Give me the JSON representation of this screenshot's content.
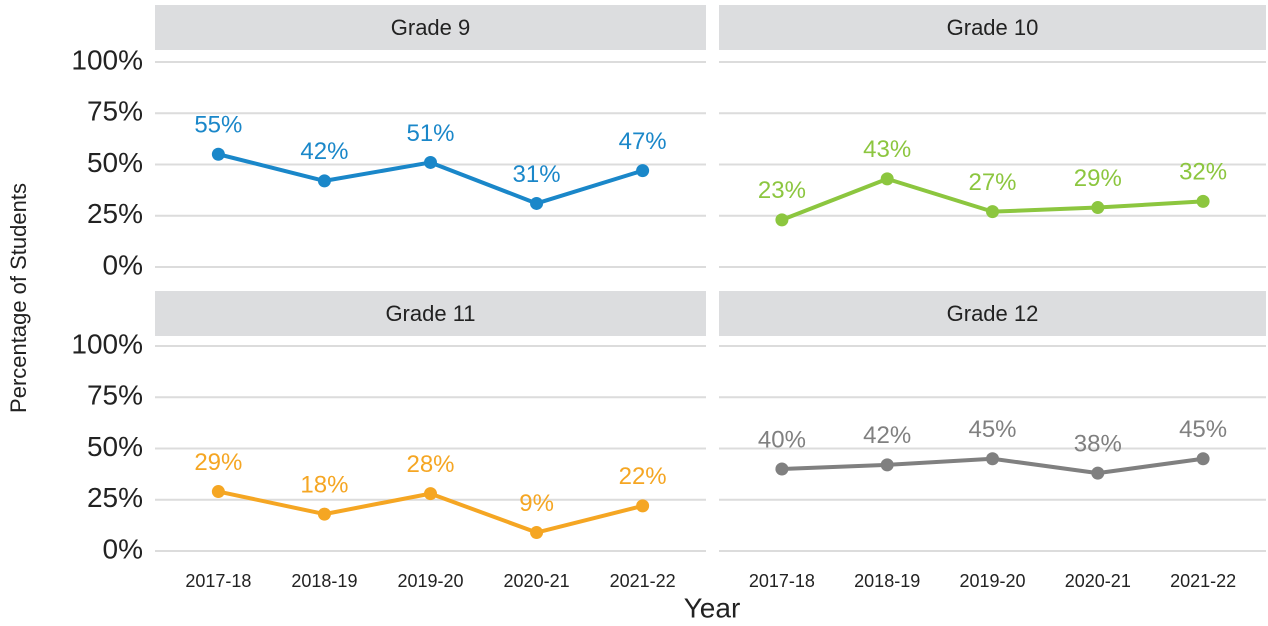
{
  "x_label": "Year",
  "y_label": "Percentage of Students",
  "chart_data": [
    {
      "type": "line",
      "title": "Grade 9",
      "categories": [
        "2017-18",
        "2018-19",
        "2019-20",
        "2020-21",
        "2021-22"
      ],
      "values": [
        55,
        42,
        51,
        31,
        47
      ],
      "value_labels": [
        "55%",
        "42%",
        "51%",
        "31%",
        "47%"
      ],
      "color": "#1a87c9",
      "ylim": [
        0,
        100
      ],
      "yticks": [
        {
          "value": 0,
          "label": "0%"
        },
        {
          "value": 25,
          "label": "25%"
        },
        {
          "value": 50,
          "label": "50%"
        },
        {
          "value": 75,
          "label": "75%"
        },
        {
          "value": 100,
          "label": "100%"
        }
      ],
      "grid": true
    },
    {
      "type": "line",
      "title": "Grade 10",
      "categories": [
        "2017-18",
        "2018-19",
        "2019-20",
        "2020-21",
        "2021-22"
      ],
      "values": [
        23,
        43,
        27,
        29,
        32
      ],
      "value_labels": [
        "23%",
        "43%",
        "27%",
        "29%",
        "32%"
      ],
      "color": "#8cc63f",
      "ylim": [
        0,
        100
      ],
      "yticks": [
        {
          "value": 0,
          "label": "0%"
        },
        {
          "value": 25,
          "label": "25%"
        },
        {
          "value": 50,
          "label": "50%"
        },
        {
          "value": 75,
          "label": "75%"
        },
        {
          "value": 100,
          "label": "100%"
        }
      ],
      "grid": true
    },
    {
      "type": "line",
      "title": "Grade 11",
      "categories": [
        "2017-18",
        "2018-19",
        "2019-20",
        "2020-21",
        "2021-22"
      ],
      "values": [
        29,
        18,
        28,
        9,
        22
      ],
      "value_labels": [
        "29%",
        "18%",
        "28%",
        "9%",
        "22%"
      ],
      "color": "#f5a623",
      "ylim": [
        0,
        100
      ],
      "yticks": [
        {
          "value": 0,
          "label": "0%"
        },
        {
          "value": 25,
          "label": "25%"
        },
        {
          "value": 50,
          "label": "50%"
        },
        {
          "value": 75,
          "label": "75%"
        },
        {
          "value": 100,
          "label": "100%"
        }
      ],
      "grid": true
    },
    {
      "type": "line",
      "title": "Grade 12",
      "categories": [
        "2017-18",
        "2018-19",
        "2019-20",
        "2020-21",
        "2021-22"
      ],
      "values": [
        40,
        42,
        45,
        38,
        45
      ],
      "value_labels": [
        "40%",
        "42%",
        "45%",
        "38%",
        "45%"
      ],
      "color": "#808080",
      "ylim": [
        0,
        100
      ],
      "yticks": [
        {
          "value": 0,
          "label": "0%"
        },
        {
          "value": 25,
          "label": "25%"
        },
        {
          "value": 50,
          "label": "50%"
        },
        {
          "value": 75,
          "label": "75%"
        },
        {
          "value": 100,
          "label": "100%"
        }
      ],
      "grid": true
    }
  ]
}
